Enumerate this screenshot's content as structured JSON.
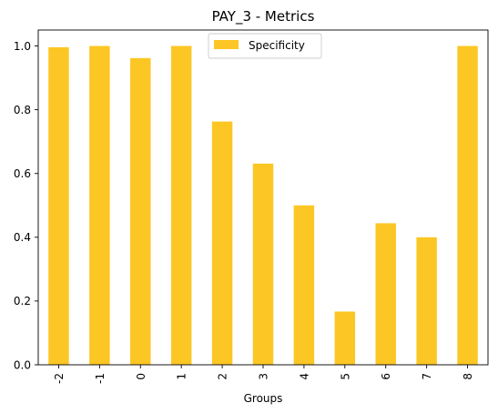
{
  "chart_data": {
    "type": "bar",
    "title": "PAY_3 - Metrics",
    "xlabel": "Groups",
    "ylabel": "",
    "categories": [
      "-2",
      "-1",
      "0",
      "1",
      "2",
      "3",
      "4",
      "5",
      "6",
      "7",
      "8"
    ],
    "series": [
      {
        "name": "Specificity",
        "color": "#fcc624",
        "values": [
          0.996,
          1.0,
          0.962,
          1.0,
          0.763,
          0.631,
          0.5,
          0.167,
          0.444,
          0.4,
          1.0
        ]
      }
    ],
    "ylim": [
      0,
      1.05
    ],
    "yticks": [
      "0.0",
      "0.2",
      "0.4",
      "0.6",
      "0.8",
      "1.0"
    ],
    "grid": false,
    "legend_position": "top-center"
  }
}
